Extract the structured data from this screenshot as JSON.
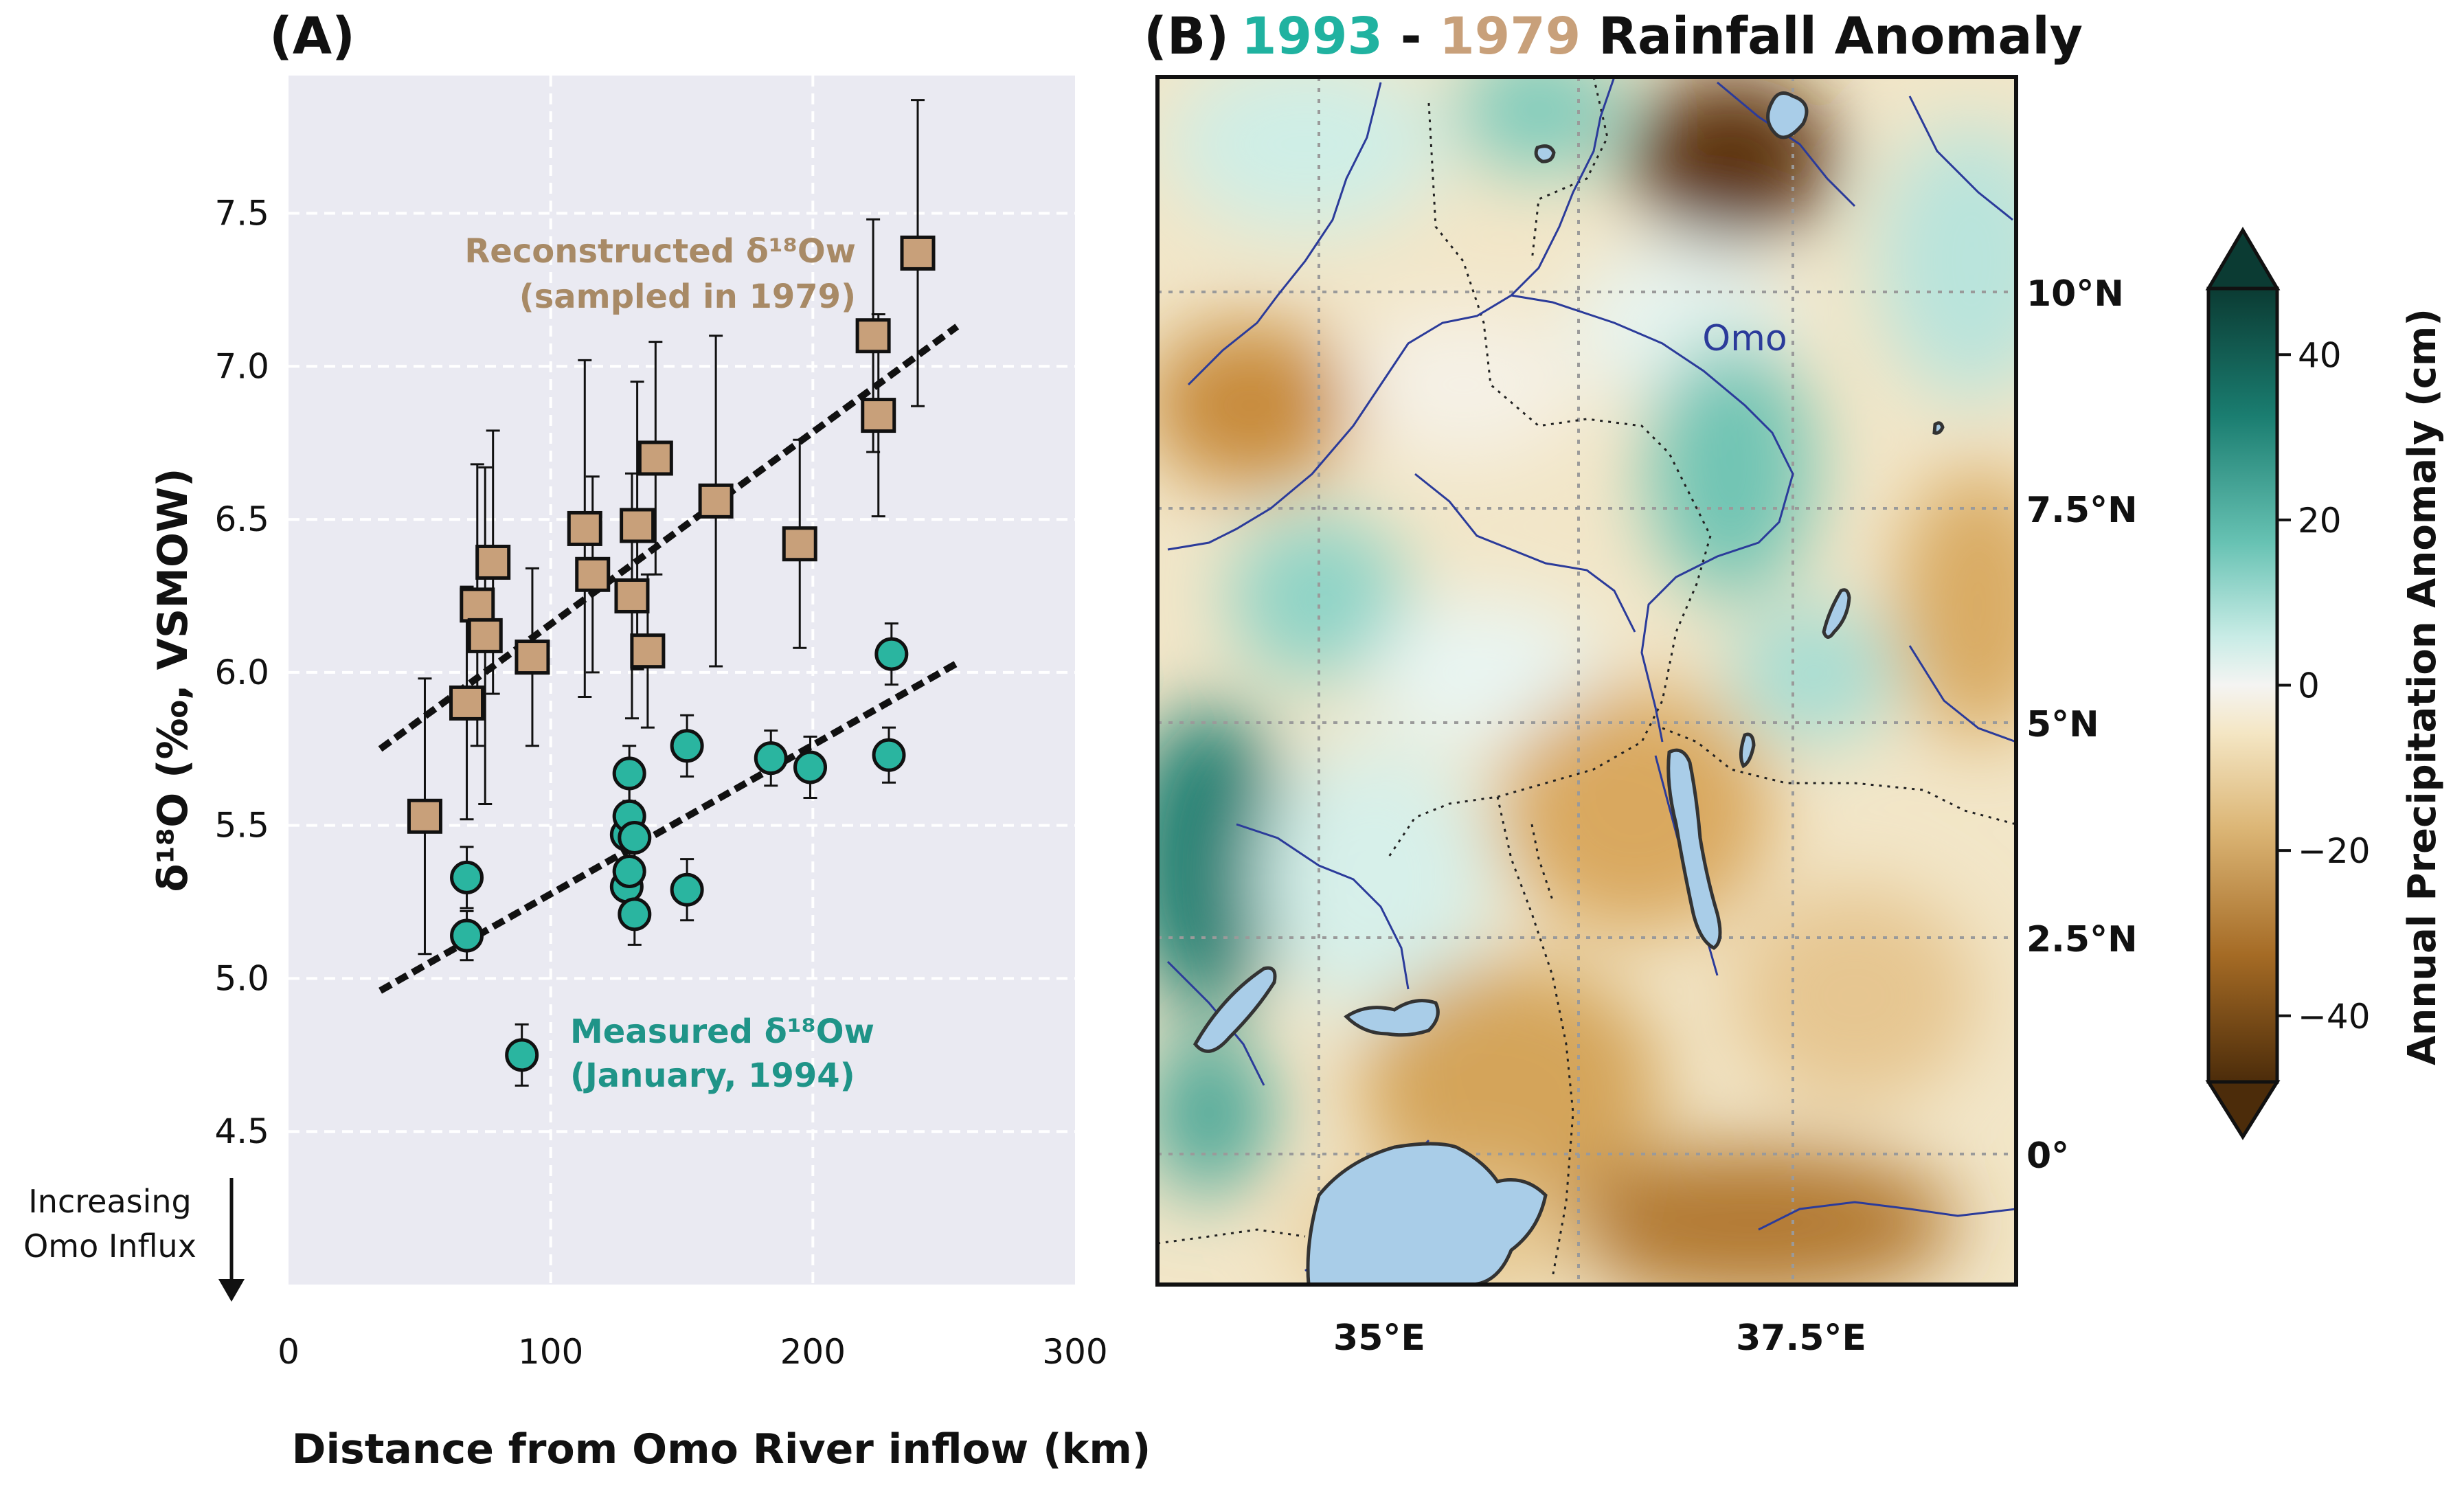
{
  "panel_a": {
    "letter": "(A)",
    "ylabel": "δ¹⁸O (‰, VSMOW)",
    "xlabel": "Distance from Omo River inflow (km)",
    "annotation_reconstructed_line1": "Reconstructed δ¹⁸Ow",
    "annotation_reconstructed_line2": "(sampled in 1979)",
    "annotation_measured_line1": "Measured δ¹⁸Ow",
    "annotation_measured_line2": "(January, 1994)",
    "side_note_line1": "Increasing",
    "side_note_line2": "Omo Influx"
  },
  "panel_b": {
    "letter": "(B)",
    "title_year1": "1993",
    "title_sep": " - ",
    "title_year2": "1979",
    "title_rest": " Rainfall Anomaly",
    "river_label": "Omo",
    "lat_labels": [
      "10°N",
      "7.5°N",
      "5°N",
      "2.5°N",
      "0°"
    ],
    "lon_labels": [
      "35°E",
      "37.5°E"
    ],
    "colorbar_title": "Annual Precipitation Anomaly (cm)",
    "colorbar_ticks": [
      "40",
      "20",
      "0",
      "−20",
      "−40"
    ],
    "colorbar_range": [
      -48,
      48
    ]
  },
  "colors": {
    "reconstructed": "#c8a07a",
    "reconstructed_text": "#a88a66",
    "measured": "#2ab5a0",
    "measured_text": "#1f9488",
    "title_1993": "#20b2a0",
    "title_1979": "#c8a07a",
    "river": "#2b3b9a",
    "lake": "#a9cde8",
    "plot_bg": "#eaeaf2"
  },
  "chart_data": [
    {
      "type": "scatter",
      "xlim": [
        0,
        300
      ],
      "ylim": [
        4.0,
        7.95
      ],
      "xticks": [
        0,
        100,
        200,
        300
      ],
      "yticks": [
        4.5,
        5.0,
        5.5,
        6.0,
        6.5,
        7.0,
        7.5
      ],
      "grid": true,
      "series": [
        {
          "marker": "square",
          "x": [
            52,
            68,
            72,
            75,
            78,
            93,
            113,
            116,
            131,
            133,
            137,
            140,
            163,
            195,
            223,
            225,
            240
          ],
          "y": [
            5.53,
            5.9,
            6.22,
            6.12,
            6.36,
            6.05,
            6.47,
            6.32,
            6.25,
            6.48,
            6.07,
            6.7,
            6.56,
            6.42,
            7.1,
            6.84,
            7.37
          ],
          "err": [
            0.45,
            0.38,
            0.46,
            0.55,
            0.43,
            0.29,
            0.55,
            0.32,
            0.4,
            0.47,
            0.25,
            0.38,
            0.54,
            0.34,
            0.38,
            0.33,
            0.5
          ],
          "trend": [
            [
              35,
              5.75
            ],
            [
              255,
              7.13
            ]
          ]
        },
        {
          "marker": "circle",
          "x": [
            68,
            68,
            89,
            129,
            129,
            130,
            130,
            130,
            132,
            132,
            152,
            152,
            184,
            199,
            229,
            230
          ],
          "y": [
            5.14,
            5.33,
            4.75,
            5.3,
            5.47,
            5.53,
            5.35,
            5.67,
            5.21,
            5.46,
            5.29,
            5.76,
            5.72,
            5.69,
            5.73,
            6.06
          ],
          "err": [
            0.08,
            0.1,
            0.1,
            0.09,
            0.1,
            0.1,
            0.09,
            0.09,
            0.1,
            0.1,
            0.1,
            0.1,
            0.09,
            0.1,
            0.09,
            0.1
          ],
          "trend": [
            [
              35,
              4.96
            ],
            [
              255,
              6.03
            ]
          ]
        }
      ]
    },
    {
      "type": "heatmap",
      "lon_ticks": [
        35,
        37.5
      ],
      "lat_ticks": [
        10,
        7.5,
        5,
        2.5,
        0
      ],
      "value_range": [
        -48,
        48
      ],
      "colormap": "BrBG"
    }
  ]
}
